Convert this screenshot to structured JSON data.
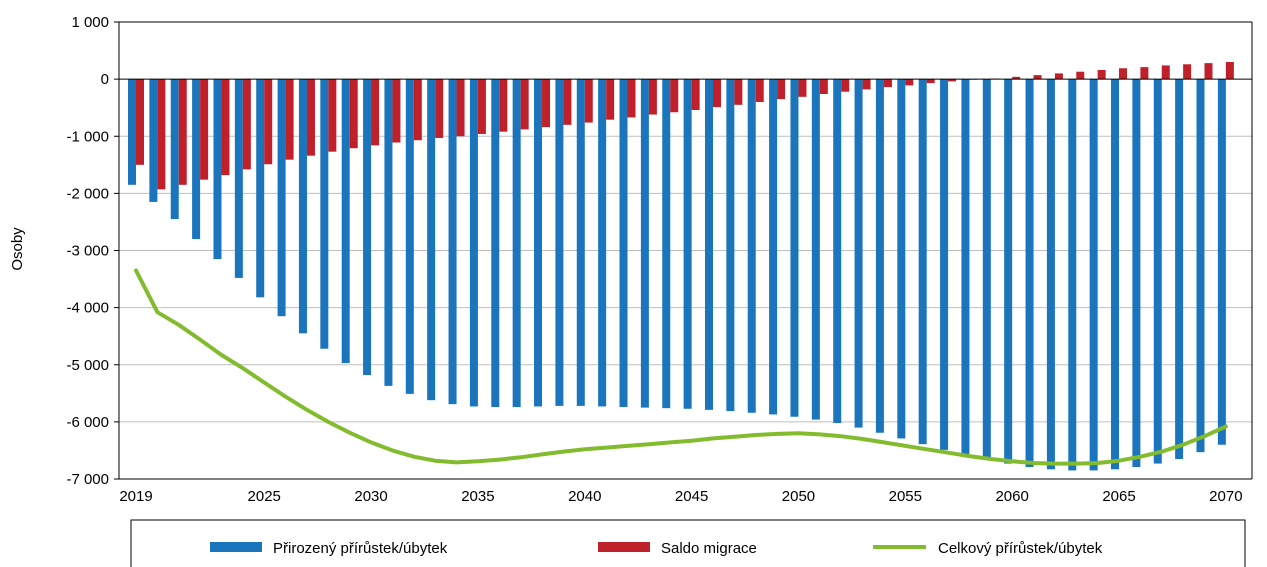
{
  "chart_data": {
    "type": "bar",
    "ylabel": "Osoby",
    "xlabel": "",
    "ylim": [
      -7000,
      1000
    ],
    "y_ticks": [
      1000,
      0,
      -1000,
      -2000,
      -3000,
      -4000,
      -5000,
      -6000,
      -7000
    ],
    "y_tick_labels": [
      "1 000",
      "0",
      "-1 000",
      "-2 000",
      "-3 000",
      "-4 000",
      "-5 000",
      "-6 000",
      "-7 000"
    ],
    "x_tick_labels": [
      "2019",
      "2025",
      "2030",
      "2035",
      "2040",
      "2045",
      "2050",
      "2055",
      "2060",
      "2065",
      "2070"
    ],
    "x_tick_years": [
      2019,
      2025,
      2030,
      2035,
      2040,
      2045,
      2050,
      2055,
      2060,
      2065,
      2070
    ],
    "x": [
      2019,
      2020,
      2021,
      2022,
      2023,
      2024,
      2025,
      2026,
      2027,
      2028,
      2029,
      2030,
      2031,
      2032,
      2033,
      2034,
      2035,
      2036,
      2037,
      2038,
      2039,
      2040,
      2041,
      2042,
      2043,
      2044,
      2045,
      2046,
      2047,
      2048,
      2049,
      2050,
      2051,
      2052,
      2053,
      2054,
      2055,
      2056,
      2057,
      2058,
      2059,
      2060,
      2061,
      2062,
      2063,
      2064,
      2065,
      2066,
      2067,
      2068,
      2069,
      2070
    ],
    "grid": true,
    "legend_position": "bottom",
    "series": [
      {
        "name": "Přirozený přírůstek/úbytek",
        "type": "bar",
        "color": "#1a75bc",
        "values": [
          -1850,
          -2150,
          -2450,
          -2800,
          -3150,
          -3480,
          -3820,
          -4150,
          -4450,
          -4720,
          -4970,
          -5180,
          -5370,
          -5510,
          -5620,
          -5690,
          -5730,
          -5740,
          -5740,
          -5730,
          -5720,
          -5720,
          -5730,
          -5740,
          -5750,
          -5760,
          -5770,
          -5790,
          -5810,
          -5840,
          -5870,
          -5910,
          -5960,
          -6020,
          -6100,
          -6190,
          -6290,
          -6390,
          -6490,
          -6580,
          -6660,
          -6730,
          -6790,
          -6830,
          -6850,
          -6850,
          -6830,
          -6790,
          -6730,
          -6650,
          -6530,
          -6400
        ]
      },
      {
        "name": "Saldo migrace",
        "type": "bar",
        "color": "#c0202a",
        "values": [
          -1500,
          -1930,
          -1850,
          -1760,
          -1680,
          -1580,
          -1490,
          -1410,
          -1340,
          -1270,
          -1210,
          -1160,
          -1110,
          -1070,
          -1030,
          -1000,
          -960,
          -920,
          -880,
          -840,
          -800,
          -760,
          -710,
          -670,
          -620,
          -580,
          -540,
          -490,
          -450,
          -400,
          -350,
          -310,
          -260,
          -220,
          -180,
          -140,
          -110,
          -70,
          -40,
          -10,
          10,
          40,
          70,
          100,
          130,
          160,
          190,
          210,
          240,
          260,
          280,
          300
        ]
      },
      {
        "name": "Celkový přírůstek/úbytek",
        "type": "line",
        "color": "#82bc2e",
        "values": [
          -3350,
          -4080,
          -4300,
          -4560,
          -4830,
          -5060,
          -5310,
          -5560,
          -5790,
          -6000,
          -6190,
          -6360,
          -6500,
          -6610,
          -6680,
          -6710,
          -6690,
          -6660,
          -6620,
          -6570,
          -6520,
          -6480,
          -6450,
          -6420,
          -6390,
          -6360,
          -6330,
          -6290,
          -6260,
          -6230,
          -6210,
          -6200,
          -6220,
          -6250,
          -6300,
          -6360,
          -6420,
          -6480,
          -6540,
          -6600,
          -6650,
          -6690,
          -6720,
          -6730,
          -6730,
          -6720,
          -6680,
          -6610,
          -6520,
          -6400,
          -6250,
          -6080
        ]
      }
    ]
  }
}
